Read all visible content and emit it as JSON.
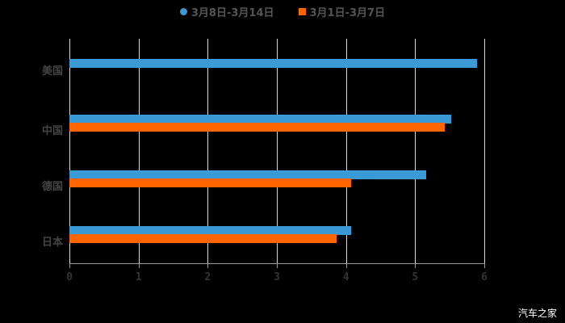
{
  "legend": [
    {
      "label": "3月8日-3月14日",
      "color": "#3a9ad6",
      "marker": "circle"
    },
    {
      "label": "3月1日-3月7日",
      "color": "#ff6600",
      "marker": "square"
    }
  ],
  "watermark": "汽车之家",
  "chart_data": {
    "type": "bar",
    "orientation": "horizontal",
    "title": "",
    "categories": [
      "美国",
      "中国",
      "德国",
      "日本"
    ],
    "series": [
      {
        "name": "3月8日-3月14日",
        "color": "#3a9ad6",
        "values": [
          5.9,
          5.52,
          5.16,
          4.07
        ]
      },
      {
        "name": "3月1日-3月7日",
        "color": "#ff6600",
        "values": [
          null,
          5.43,
          4.07,
          3.86
        ]
      }
    ],
    "xlabel": "",
    "ylabel": "",
    "xlim": [
      0,
      6
    ],
    "xticks": [
      "0",
      "1",
      "2",
      "3",
      "4",
      "5",
      "6"
    ],
    "grid": true,
    "legend_position": "top"
  }
}
